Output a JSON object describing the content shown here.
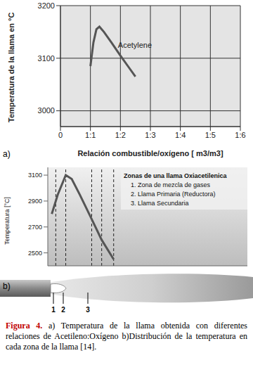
{
  "chart_data": [
    {
      "type": "line",
      "xlabel": "Relación combustible/oxígeno [ m3/m3]",
      "ylabel": "Temperatura de la llama en °C",
      "x": [
        1.0,
        1.1,
        1.2,
        1.3,
        1.45,
        1.7,
        2.0,
        2.25,
        2.5
      ],
      "series": [
        {
          "name": "Acetylene",
          "color": "#555555",
          "values": [
            3085,
            3130,
            3155,
            3160,
            3150,
            3130,
            3105,
            3085,
            3065
          ]
        }
      ],
      "annotations": [
        {
          "text": "Acetylene",
          "x": 1.8,
          "y": 3125
        }
      ],
      "xlim": [
        0,
        6
      ],
      "xticks": [
        0,
        {
          "value": 1,
          "label": "1:1"
        },
        {
          "value": 2,
          "label": "1:2"
        },
        {
          "value": 3,
          "label": "1:3"
        },
        {
          "value": 4,
          "label": "1:4"
        },
        {
          "value": 5,
          "label": "1:5"
        },
        {
          "value": 6,
          "label": "1:6"
        }
      ],
      "ylim": [
        2970,
        3200
      ],
      "yticks": [
        3000,
        3100,
        3200
      ],
      "grid": true
    },
    {
      "type": "line",
      "ylabel": "Temperatura [°C]",
      "x": [
        2,
        5,
        9,
        12,
        16,
        22,
        27,
        33
      ],
      "series": [
        {
          "name": "Temperatura",
          "color": "#555555",
          "values": [
            2800,
            2950,
            3100,
            3070,
            2950,
            2760,
            2600,
            2450
          ]
        }
      ],
      "zone_lines": [
        4,
        9,
        22,
        27,
        33
      ],
      "annotations": [
        {
          "text": "Zonas de una llama Oxiacetilenica"
        },
        {
          "text": "1. Zona de mezcla de gases"
        },
        {
          "text": "2. Llama Primaria (Reductora)"
        },
        {
          "text": "3. Llama Secundaria"
        }
      ],
      "xlim": [
        0,
        100
      ],
      "ylim": [
        2400,
        3160
      ],
      "yticks": [
        2500,
        2700,
        2900,
        3100
      ],
      "grid": false,
      "tick_labels": "y"
    }
  ],
  "panel_labels": [
    "a)",
    "b)"
  ],
  "flame_labels": [
    "1",
    "2",
    "3"
  ],
  "caption": {
    "label": "Figura 4.",
    "text": " a) Temperatura de la llama obtenida con diferentes relaciones de Acetileno:Oxígeno b)Distribución de la temperatura en cada zona de la llama [14]."
  }
}
